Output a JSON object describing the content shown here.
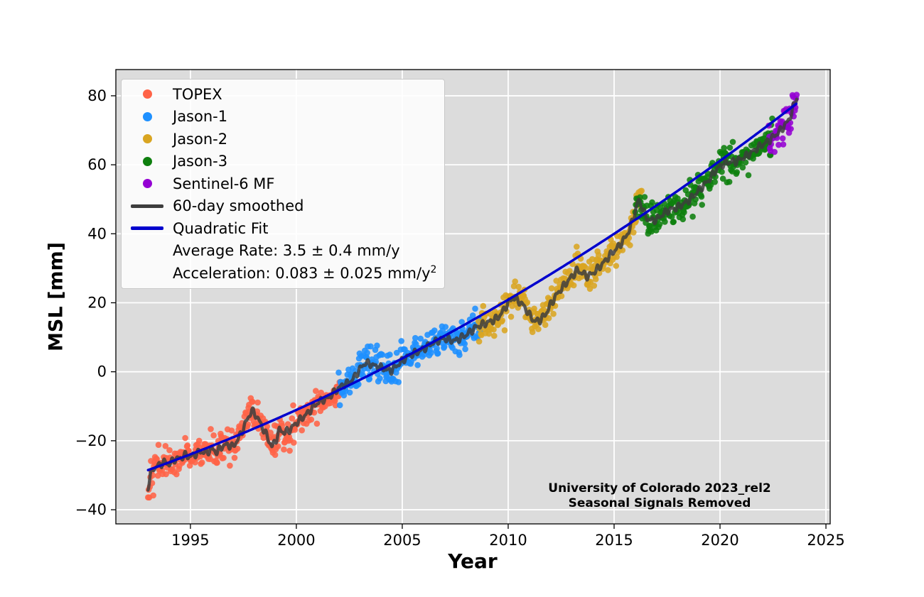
{
  "chart_data": {
    "type": "scatter",
    "title": "",
    "xlabel": "Year",
    "ylabel": "MSL [mm]",
    "xlim": [
      1991.48,
      2025.2
    ],
    "ylim": [
      -44.1,
      87.6
    ],
    "grid": true,
    "figure_bg": "#ffffff",
    "plot_bg": "#dcdcdc",
    "grid_color": "#ffffff",
    "xticks": {
      "values": [
        1995,
        2000,
        2005,
        2010,
        2015,
        2020,
        2025
      ],
      "labels": [
        "1995",
        "2000",
        "2005",
        "2010",
        "2015",
        "2020",
        "2025"
      ]
    },
    "yticks": {
      "values": [
        -40,
        -20,
        0,
        20,
        40,
        60,
        80
      ],
      "labels": [
        "−40",
        "−20",
        "0",
        "20",
        "40",
        "60",
        "80"
      ]
    },
    "missions": [
      {
        "name": "TOPEX",
        "color": "#ff6347",
        "start": 1993.0,
        "end": 2002.1
      },
      {
        "name": "Jason-1",
        "color": "#1e90ff",
        "start": 2002.0,
        "end": 2008.7
      },
      {
        "name": "Jason-2",
        "color": "#d9a521",
        "start": 2008.6,
        "end": 2016.3
      },
      {
        "name": "Jason-3",
        "color": "#0e7f0e",
        "start": 2016.0,
        "end": 2022.5
      },
      {
        "name": "Sentinel-6 MF",
        "color": "#9400d3",
        "start": 2022.3,
        "end": 2023.62
      }
    ],
    "smoothed": {
      "name": "60-day smoothed",
      "color": "#3d3d3d",
      "width": 4.5,
      "anchors": [
        [
          1993.0,
          -33.5
        ],
        [
          1993.1,
          -30.2
        ],
        [
          1993.25,
          -28.0
        ],
        [
          1993.5,
          -27.2
        ],
        [
          1993.75,
          -26.2
        ],
        [
          1994.0,
          -26.8
        ],
        [
          1994.25,
          -25.4
        ],
        [
          1994.5,
          -25.1
        ],
        [
          1994.75,
          -24.2
        ],
        [
          1995.0,
          -24.6
        ],
        [
          1995.25,
          -23.8
        ],
        [
          1995.5,
          -23.1
        ],
        [
          1995.75,
          -23.5
        ],
        [
          1996.0,
          -22.3
        ],
        [
          1996.25,
          -23.3
        ],
        [
          1996.5,
          -21.6
        ],
        [
          1996.75,
          -21.1
        ],
        [
          1997.0,
          -21.8
        ],
        [
          1997.25,
          -19.5
        ],
        [
          1997.5,
          -16.5
        ],
        [
          1997.7,
          -13.5
        ],
        [
          1997.9,
          -11.3
        ],
        [
          1998.1,
          -12.6
        ],
        [
          1998.35,
          -15.5
        ],
        [
          1998.6,
          -18.5
        ],
        [
          1998.85,
          -21.8
        ],
        [
          1999.05,
          -19.6
        ],
        [
          1999.2,
          -16.9
        ],
        [
          1999.45,
          -17.6
        ],
        [
          1999.7,
          -16.8
        ],
        [
          2000.0,
          -14.8
        ],
        [
          2000.25,
          -13.5
        ],
        [
          2000.5,
          -12.2
        ],
        [
          2000.75,
          -10.5
        ],
        [
          2001.0,
          -9.0
        ],
        [
          2001.25,
          -8.1
        ],
        [
          2001.5,
          -7.6
        ],
        [
          2001.75,
          -6.2
        ],
        [
          2002.0,
          -4.8
        ],
        [
          2002.25,
          -3.6
        ],
        [
          2002.5,
          -3.2
        ],
        [
          2002.75,
          -1.5
        ],
        [
          2003.0,
          0.8
        ],
        [
          2003.25,
          2.6
        ],
        [
          2003.5,
          2.2
        ],
        [
          2003.75,
          1.6
        ],
        [
          2004.0,
          1.2
        ],
        [
          2004.25,
          0.6
        ],
        [
          2004.5,
          0.4
        ],
        [
          2004.75,
          1.8
        ],
        [
          2005.0,
          3.2
        ],
        [
          2005.25,
          4.4
        ],
        [
          2005.5,
          5.2
        ],
        [
          2005.75,
          5.8
        ],
        [
          2006.0,
          6.6
        ],
        [
          2006.25,
          7.6
        ],
        [
          2006.5,
          8.6
        ],
        [
          2006.75,
          9.2
        ],
        [
          2007.0,
          9.6
        ],
        [
          2007.25,
          9.2
        ],
        [
          2007.5,
          9.0
        ],
        [
          2007.75,
          9.8
        ],
        [
          2008.0,
          10.6
        ],
        [
          2008.25,
          11.8
        ],
        [
          2008.5,
          13.0
        ],
        [
          2008.75,
          13.6
        ],
        [
          2009.0,
          14.2
        ],
        [
          2009.25,
          14.8
        ],
        [
          2009.5,
          15.6
        ],
        [
          2009.75,
          17.5
        ],
        [
          2010.0,
          20.0
        ],
        [
          2010.25,
          21.5
        ],
        [
          2010.5,
          20.5
        ],
        [
          2010.75,
          19.0
        ],
        [
          2011.0,
          16.5
        ],
        [
          2011.25,
          14.6
        ],
        [
          2011.5,
          15.0
        ],
        [
          2011.75,
          16.5
        ],
        [
          2012.0,
          19.5
        ],
        [
          2012.25,
          22.0
        ],
        [
          2012.5,
          24.0
        ],
        [
          2012.75,
          25.8
        ],
        [
          2013.0,
          27.6
        ],
        [
          2013.25,
          29.4
        ],
        [
          2013.5,
          28.6
        ],
        [
          2013.75,
          27.6
        ],
        [
          2014.0,
          28.6
        ],
        [
          2014.25,
          30.0
        ],
        [
          2014.5,
          31.6
        ],
        [
          2014.75,
          33.4
        ],
        [
          2015.0,
          35.0
        ],
        [
          2015.25,
          36.6
        ],
        [
          2015.5,
          38.6
        ],
        [
          2015.75,
          41.5
        ],
        [
          2016.0,
          46.5
        ],
        [
          2016.15,
          49.8
        ],
        [
          2016.3,
          48.0
        ],
        [
          2016.5,
          44.8
        ],
        [
          2016.75,
          43.8
        ],
        [
          2017.0,
          44.2
        ],
        [
          2017.25,
          45.4
        ],
        [
          2017.5,
          46.6
        ],
        [
          2017.75,
          47.2
        ],
        [
          2018.0,
          47.6
        ],
        [
          2018.25,
          48.6
        ],
        [
          2018.5,
          49.6
        ],
        [
          2018.75,
          51.0
        ],
        [
          2019.0,
          52.6
        ],
        [
          2019.25,
          54.2
        ],
        [
          2019.5,
          55.8
        ],
        [
          2019.75,
          58.0
        ],
        [
          2020.0,
          59.6
        ],
        [
          2020.25,
          60.6
        ],
        [
          2020.5,
          60.8
        ],
        [
          2020.75,
          61.0
        ],
        [
          2021.0,
          61.8
        ],
        [
          2021.25,
          62.6
        ],
        [
          2021.5,
          63.6
        ],
        [
          2021.75,
          64.8
        ],
        [
          2022.0,
          65.8
        ],
        [
          2022.25,
          66.8
        ],
        [
          2022.5,
          68.0
        ],
        [
          2022.75,
          69.4
        ],
        [
          2023.0,
          71.0
        ],
        [
          2023.2,
          72.6
        ],
        [
          2023.35,
          74.5
        ],
        [
          2023.5,
          77.5
        ],
        [
          2023.62,
          79.5
        ]
      ]
    },
    "quadratic_fit": {
      "name": "Quadratic Fit",
      "color": "#0000cd",
      "width": 3.5,
      "t0": 1993.0,
      "y0": -28.5,
      "initial_rate": 2.2,
      "acceleration": 0.083,
      "t_start": 1993.0,
      "t_end": 2023.62
    },
    "scatter_style": {
      "cadence_years": 0.0274,
      "sigma_mm": 2.2,
      "radius_px": 4.3,
      "opacity": 0.88
    },
    "stats": {
      "average_rate_mm_per_yr": "3.5 ± 0.4",
      "acceleration_mm_per_yr2": "0.083 ± 0.025"
    },
    "stats_lines": [
      {
        "text": "Average Rate: 3.5 ± 0.4 mm/y",
        "sup": ""
      },
      {
        "text": "Acceleration: 0.083 ± 0.025 mm/y",
        "sup": "2"
      }
    ],
    "annotation": [
      "University of Colorado 2023_rel2",
      "Seasonal Signals Removed"
    ]
  }
}
